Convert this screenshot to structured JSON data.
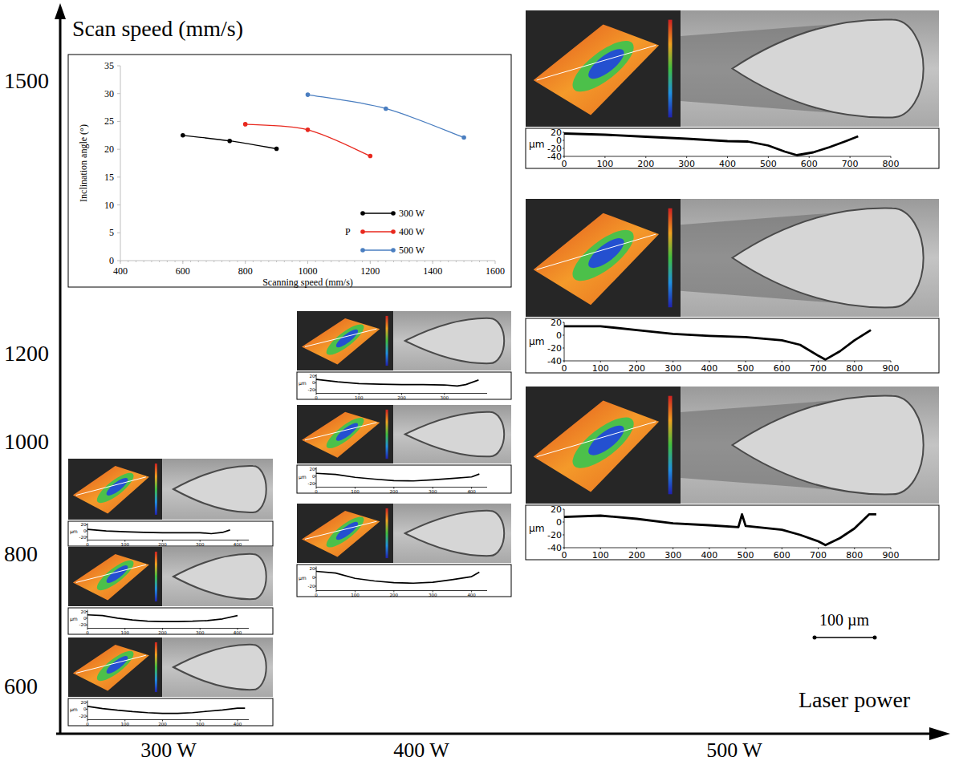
{
  "chart_data": {
    "type": "line",
    "x_label": "Scanning speed (mm/s)",
    "y_label": "Inclination angle (°)",
    "xlim": [
      400,
      1600
    ],
    "xticks": [
      400,
      600,
      800,
      1000,
      1200,
      1400,
      1600
    ],
    "ylim": [
      0,
      35
    ],
    "yticks": [
      0,
      5,
      10,
      15,
      20,
      25,
      30,
      35
    ],
    "grid": false,
    "legend": "bottom right",
    "legend_title": "P",
    "marker": "circle",
    "series": [
      {
        "name": "300 W",
        "color": "#000000",
        "x": [
          600,
          750,
          900
        ],
        "values": [
          22.5,
          21.5,
          20.1
        ]
      },
      {
        "name": "400 W",
        "color": "#e8281e",
        "x": [
          800,
          1000,
          1200
        ],
        "values": [
          24.5,
          23.5,
          18.8
        ]
      },
      {
        "name": "500 W",
        "color": "#4a7ec0",
        "x": [
          1000,
          1250,
          1500
        ],
        "values": [
          29.8,
          27.3,
          22.1
        ]
      }
    ]
  },
  "figure": {
    "y_axis_title": "Scan speed (mm/s)",
    "x_axis_title": "Laser power",
    "y_tick_labels": [
      600,
      800,
      1000,
      1200,
      1500
    ],
    "x_tick_labels": [
      "300 W",
      "400 W",
      "500 W"
    ],
    "scale_bar": "100 µm",
    "columns": [
      {
        "panels": [
          {
            "profile": {
              "y_label": "µm",
              "xlim": [
                0,
                430
              ],
              "xticks": [
                0,
                100,
                200,
                300,
                400
              ],
              "ylim": [
                -30,
                25
              ],
              "yticks": [
                20,
                0,
                -20
              ],
              "x": [
                0,
                50,
                100,
                150,
                200,
                250,
                300,
                330,
                360,
                380
              ],
              "values": [
                5,
                0,
                -3,
                -5,
                -6,
                -6,
                -6,
                -9,
                -5,
                3
              ]
            }
          },
          {
            "profile": {
              "y_label": "µm",
              "xlim": [
                0,
                430
              ],
              "xticks": [
                0,
                100,
                200,
                300,
                400
              ],
              "ylim": [
                -30,
                25
              ],
              "yticks": [
                20,
                0,
                -20
              ],
              "x": [
                0,
                40,
                80,
                120,
                160,
                200,
                240,
                280,
                320,
                360,
                400
              ],
              "values": [
                10,
                8,
                0,
                -5,
                -9,
                -10,
                -10,
                -9,
                -7,
                -2,
                8
              ]
            }
          },
          {
            "profile": {
              "y_label": "µm",
              "xlim": [
                0,
                430
              ],
              "xticks": [
                0,
                100,
                200,
                300,
                400
              ],
              "ylim": [
                -30,
                25
              ],
              "yticks": [
                20,
                0,
                -20
              ],
              "x": [
                0,
                40,
                80,
                120,
                160,
                200,
                240,
                280,
                320,
                360,
                400,
                420
              ],
              "values": [
                8,
                2,
                -3,
                -7,
                -10,
                -12,
                -12,
                -10,
                -6,
                -2,
                3,
                3
              ]
            }
          }
        ]
      },
      {
        "panels": [
          {
            "profile": {
              "y_label": "µm",
              "xlim": [
                0,
                400
              ],
              "xticks": [
                0,
                100,
                200,
                300
              ],
              "ylim": [
                -30,
                25
              ],
              "yticks": [
                20,
                0,
                -20
              ],
              "x": [
                0,
                50,
                100,
                150,
                200,
                250,
                300,
                330,
                350,
                380
              ],
              "values": [
                10,
                3,
                -2,
                -4,
                -5,
                -5,
                -6,
                -9,
                -5,
                8
              ]
            }
          },
          {
            "profile": {
              "y_label": "µm",
              "xlim": [
                0,
                440
              ],
              "xticks": [
                0,
                100,
                200,
                300,
                400
              ],
              "ylim": [
                -30,
                25
              ],
              "yticks": [
                20,
                0,
                -20
              ],
              "x": [
                0,
                50,
                100,
                150,
                200,
                250,
                300,
                350,
                400,
                420
              ],
              "values": [
                8,
                5,
                -3,
                -8,
                -12,
                -13,
                -10,
                -6,
                -2,
                6
              ]
            }
          },
          {
            "profile": {
              "y_label": "µm",
              "xlim": [
                0,
                440
              ],
              "xticks": [
                0,
                100,
                200,
                300,
                400
              ],
              "ylim": [
                -30,
                25
              ],
              "yticks": [
                20,
                0,
                -20
              ],
              "x": [
                0,
                50,
                100,
                150,
                200,
                250,
                300,
                350,
                400,
                420
              ],
              "values": [
                14,
                10,
                -2,
                -8,
                -12,
                -13,
                -11,
                -5,
                2,
                12
              ]
            }
          }
        ]
      },
      {
        "panels": [
          {
            "profile": {
              "y_label": "µm",
              "xlim": [
                0,
                800
              ],
              "xticks": [
                0,
                100,
                200,
                300,
                400,
                500,
                600,
                700,
                800
              ],
              "ylim": [
                -40,
                20
              ],
              "yticks": [
                20,
                0,
                -20,
                -40
              ],
              "x": [
                0,
                100,
                200,
                300,
                400,
                450,
                500,
                540,
                570,
                610,
                650,
                690,
                720
              ],
              "values": [
                17,
                14,
                9,
                4,
                -2,
                -3,
                -13,
                -28,
                -37,
                -30,
                -17,
                -2,
                10
              ]
            }
          },
          {
            "profile": {
              "y_label": "µm",
              "xlim": [
                0,
                900
              ],
              "xticks": [
                0,
                100,
                200,
                300,
                400,
                500,
                600,
                700,
                800,
                900
              ],
              "ylim": [
                -40,
                20
              ],
              "yticks": [
                20,
                0,
                -20,
                -40
              ],
              "x": [
                0,
                100,
                200,
                300,
                400,
                500,
                600,
                650,
                700,
                720,
                760,
                800,
                845
              ],
              "values": [
                14,
                14,
                8,
                2,
                -1,
                -3,
                -8,
                -15,
                -32,
                -38,
                -25,
                -8,
                8
              ]
            }
          },
          {
            "profile": {
              "y_label": "µm",
              "xlim": [
                0,
                900
              ],
              "xticks": [
                0,
                100,
                200,
                300,
                400,
                500,
                600,
                700,
                800,
                900
              ],
              "ylim": [
                -40,
                20
              ],
              "yticks": [
                20,
                0,
                -20,
                -40
              ],
              "x": [
                0,
                100,
                200,
                300,
                400,
                480,
                490,
                500,
                600,
                650,
                700,
                720,
                760,
                800,
                840,
                860
              ],
              "values": [
                8,
                10,
                5,
                -2,
                -5,
                -8,
                12,
                -6,
                -12,
                -20,
                -30,
                -36,
                -25,
                -10,
                12,
                12
              ]
            }
          }
        ]
      }
    ]
  }
}
